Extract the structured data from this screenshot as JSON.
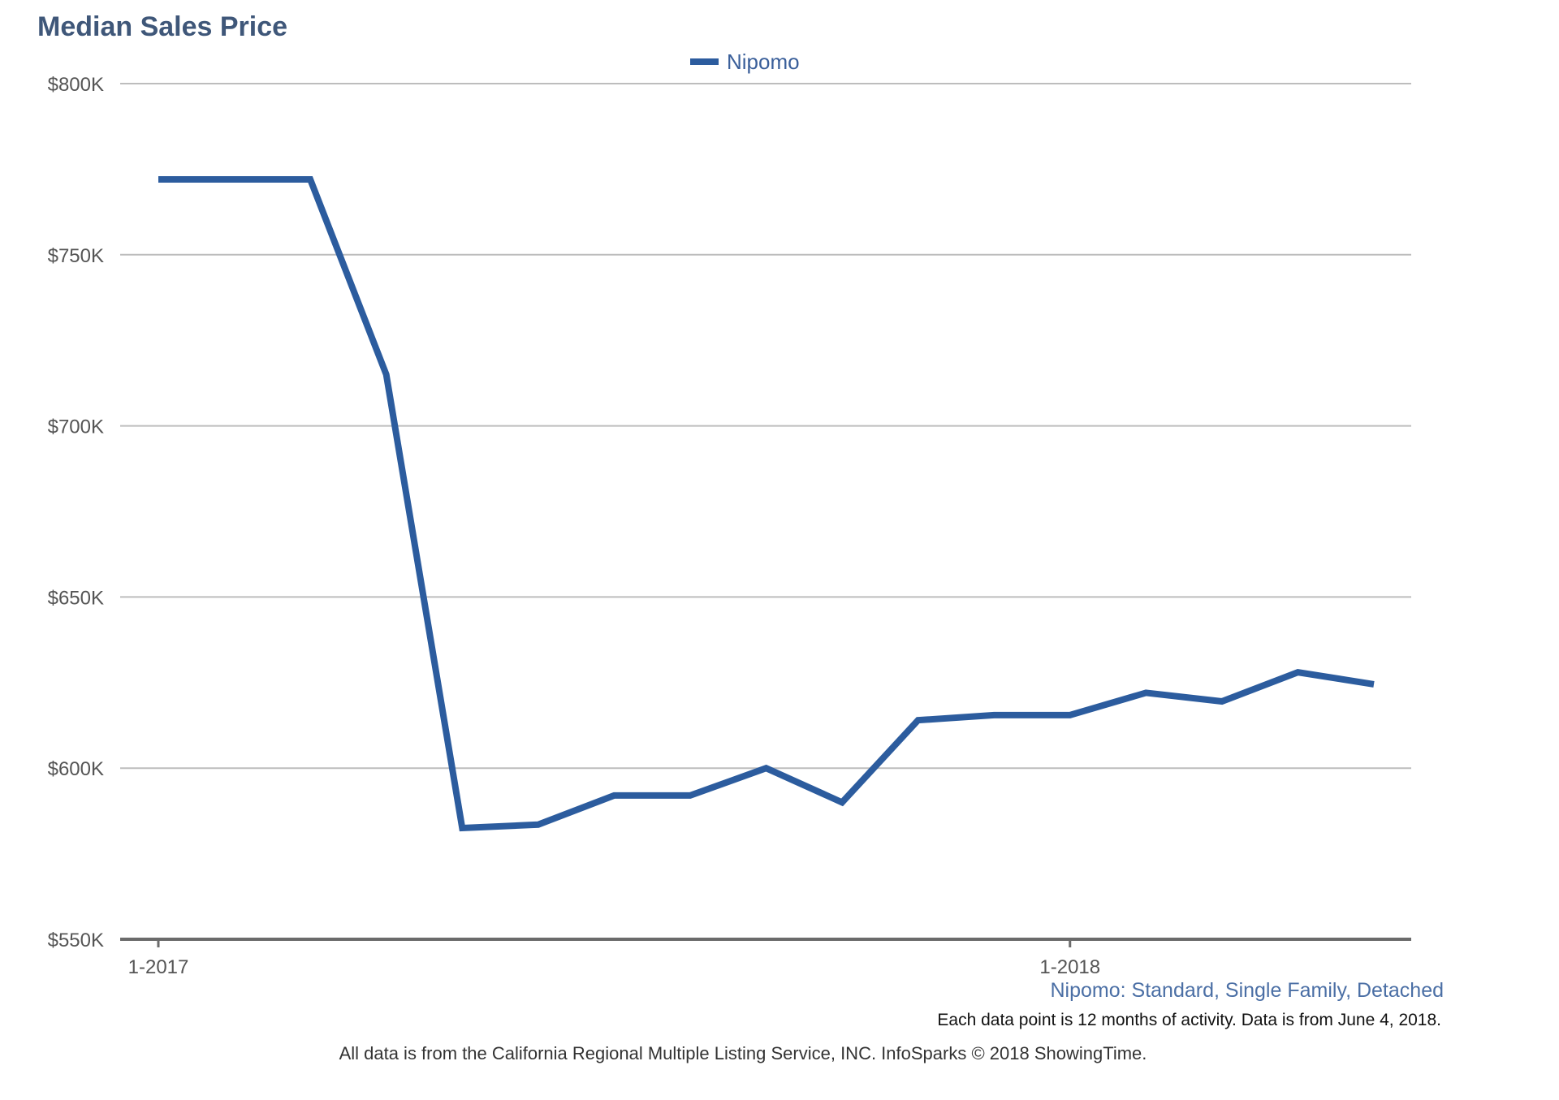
{
  "chart_data": {
    "type": "line",
    "title": "Median Sales Price",
    "legend_position": "top-center",
    "grid": true,
    "x": [
      "1-2017",
      "2-2017",
      "3-2017",
      "4-2017",
      "5-2017",
      "6-2017",
      "7-2017",
      "8-2017",
      "9-2017",
      "10-2017",
      "11-2017",
      "12-2017",
      "1-2018",
      "2-2018",
      "3-2018",
      "4-2018",
      "5-2018"
    ],
    "x_ticks": [
      "1-2017",
      "1-2018"
    ],
    "ylim": [
      550000,
      800000
    ],
    "y_ticks": [
      {
        "value": 550000,
        "label": "$550K"
      },
      {
        "value": 600000,
        "label": "$600K"
      },
      {
        "value": 650000,
        "label": "$650K"
      },
      {
        "value": 700000,
        "label": "$700K"
      },
      {
        "value": 750000,
        "label": "$750K"
      },
      {
        "value": 800000,
        "label": "$800K"
      }
    ],
    "series": [
      {
        "name": "Nipomo",
        "color": "#2c5c9e",
        "values": [
          772000,
          772000,
          772000,
          715000,
          582500,
          583500,
          592000,
          592000,
          600000,
          590000,
          614000,
          615500,
          615500,
          622000,
          619500,
          628000,
          624500
        ]
      }
    ],
    "subtitle": "Nipomo: Standard, Single Family, Detached",
    "note": "Each data point is 12 months of activity. Data is from June 4, 2018.",
    "source": "All data is from the California Regional Multiple Listing Service, INC. InfoSparks © 2018 ShowingTime."
  }
}
